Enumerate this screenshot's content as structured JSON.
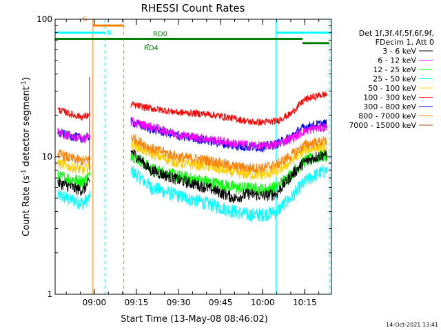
{
  "chart_data": {
    "type": "line",
    "title": "RHESSI Count Rates",
    "xlabel": "Start Time (13-May-08 08:46:02)",
    "ylabel_main": "Count Rate (s",
    "ylabel_sup1": "-1",
    "ylabel_mid": " detector segment",
    "ylabel_sup2": "-1",
    "ylabel_end": ")",
    "yscale": "log",
    "ylim": [
      1,
      100
    ],
    "xlim": [
      "08:46:02",
      "10:24:30"
    ],
    "x_ticks": [
      "09:00",
      "09:15",
      "09:30",
      "09:45",
      "10:00",
      "10:15"
    ],
    "y_ticks": [
      "1",
      "10",
      "100"
    ],
    "legend_header": [
      "Det 1f,3f,4f,5f,6f,9f,",
      "FDecim 1, Att 0"
    ],
    "legend_position": "right",
    "timestamp": "14-Oct-2021 13:41",
    "annotations": {
      "saa_label": "S",
      "night_label": "N",
      "rd0_label": "RD0",
      "rd4_label": "RD4"
    },
    "series": [
      {
        "name": "3 - 6 keV",
        "color": "#000000",
        "x": [
          "08:47",
          "08:50",
          "08:53",
          "08:56",
          "08:58",
          "09:13",
          "09:20",
          "09:30",
          "09:40",
          "09:50",
          "09:55",
          "10:00",
          "10:05",
          "10:10",
          "10:15",
          "10:20",
          "10:23"
        ],
        "values": [
          6.5,
          6.2,
          5.9,
          5.7,
          6.5,
          11,
          8,
          6.8,
          6.0,
          5.0,
          5.4,
          5.2,
          5.4,
          7.2,
          9.2,
          10.2,
          10.5
        ]
      },
      {
        "name": "6 - 12 keV",
        "color": "#ff00ff",
        "x": [
          "08:47",
          "08:50",
          "08:53",
          "08:56",
          "08:58",
          "09:13",
          "09:20",
          "09:30",
          "09:40",
          "09:50",
          "09:55",
          "10:00",
          "10:05",
          "10:10",
          "10:15",
          "10:20",
          "10:23"
        ],
        "values": [
          15,
          14.5,
          14,
          13.5,
          14,
          18,
          16.5,
          14.5,
          13.5,
          12.5,
          12.2,
          12.0,
          12.3,
          13.5,
          15.5,
          16.2,
          16.5
        ]
      },
      {
        "name": "12 - 25 keV",
        "color": "#00ff00",
        "x": [
          "08:47",
          "08:50",
          "08:53",
          "08:56",
          "08:58",
          "09:13",
          "09:20",
          "09:30",
          "09:40",
          "09:50",
          "09:55",
          "10:00",
          "10:05",
          "10:10",
          "10:15",
          "10:20",
          "10:23"
        ],
        "values": [
          7.2,
          7.0,
          6.8,
          6.6,
          7.2,
          10.5,
          8.2,
          7.2,
          6.6,
          6.0,
          5.9,
          5.8,
          6.0,
          7.5,
          9.3,
          10.0,
          10.3
        ]
      },
      {
        "name": "25 - 50 keV",
        "color": "#00ffff",
        "x": [
          "08:47",
          "08:50",
          "08:53",
          "08:56",
          "08:58",
          "09:13",
          "09:20",
          "09:30",
          "09:40",
          "09:50",
          "09:55",
          "10:00",
          "10:05",
          "10:10",
          "10:15",
          "10:20",
          "10:23"
        ],
        "values": [
          5.3,
          5.0,
          4.8,
          4.6,
          5.0,
          8.0,
          6.0,
          5.2,
          4.6,
          4.0,
          3.8,
          3.8,
          4.0,
          5.0,
          6.6,
          7.6,
          8.0
        ]
      },
      {
        "name": "50 - 100 keV",
        "color": "#ffcc00",
        "x": [
          "08:47",
          "08:50",
          "08:53",
          "08:56",
          "08:58",
          "09:13",
          "09:20",
          "09:30",
          "09:40",
          "09:50",
          "09:55",
          "10:00",
          "10:05",
          "10:10",
          "10:15",
          "10:20",
          "10:23"
        ],
        "values": [
          9.0,
          8.6,
          8.3,
          8.0,
          8.5,
          12.5,
          10.5,
          9.0,
          8.6,
          7.6,
          7.4,
          7.4,
          7.8,
          9.2,
          11.2,
          11.8,
          12.0
        ]
      },
      {
        "name": "100 - 300 keV",
        "color": "#ff0000",
        "x": [
          "08:47",
          "08:50",
          "08:53",
          "08:56",
          "08:58",
          "09:13",
          "09:20",
          "09:30",
          "09:40",
          "09:50",
          "09:55",
          "10:00",
          "10:05",
          "10:10",
          "10:15",
          "10:20",
          "10:23"
        ],
        "values": [
          22,
          21,
          20,
          19.5,
          20,
          24,
          22.5,
          21,
          20.5,
          19,
          18,
          17.8,
          18.2,
          20.5,
          26,
          28,
          28.5
        ]
      },
      {
        "name": "300 - 800 keV",
        "color": "#0000ff",
        "x": [
          "08:47",
          "08:50",
          "08:53",
          "08:56",
          "08:58",
          "09:13",
          "09:20",
          "09:30",
          "09:40",
          "09:50",
          "09:55",
          "10:00",
          "10:05",
          "10:10",
          "10:15",
          "10:20",
          "10:23"
        ],
        "values": [
          15,
          14.4,
          14,
          13.6,
          14,
          18,
          16,
          14.2,
          13.2,
          12.0,
          11.8,
          11.8,
          12.4,
          14.0,
          16.5,
          17.2,
          17.5
        ]
      },
      {
        "name": "800 - 7000 keV",
        "color": "#ff8000",
        "x": [
          "08:47",
          "08:50",
          "08:53",
          "08:56",
          "08:58",
          "09:13",
          "09:20",
          "09:30",
          "09:40",
          "09:50",
          "09:55",
          "10:00",
          "10:05",
          "10:10",
          "10:15",
          "10:20",
          "10:23"
        ],
        "values": [
          10.5,
          10.0,
          9.6,
          9.3,
          9.6,
          14,
          11.5,
          10.0,
          9.5,
          8.5,
          8.3,
          8.3,
          8.8,
          10.2,
          12.2,
          12.8,
          13.0
        ]
      },
      {
        "name": "7000 - 15000 keV",
        "color": "#a05000",
        "x": [],
        "values": []
      }
    ],
    "markers": {
      "vertical_lines": [
        {
          "x": "08:46:02",
          "color": "#00ffff",
          "style": "solid"
        },
        {
          "x": "08:59:30",
          "color": "#ff8000",
          "style": "solid"
        },
        {
          "x": "09:03:45",
          "color": "#00ffff",
          "style": "dashed"
        },
        {
          "x": "09:10:30",
          "color": "#ff8000",
          "style": "dashed"
        },
        {
          "x": "10:04:45",
          "color": "#00ffff",
          "style": "solid"
        },
        {
          "x": "10:23:45",
          "color": "#00ffff",
          "style": "dashed"
        }
      ],
      "bars": [
        {
          "label_key": "night",
          "color": "#00ffff",
          "y": 80,
          "segments": [
            [
              "08:46:02",
              "09:03:45"
            ],
            [
              "10:04:45",
              "10:24:30"
            ]
          ]
        },
        {
          "label_key": "saa",
          "color": "#ff8000",
          "y": 90,
          "segments": [
            [
              "08:59:30",
              "09:10:30"
            ]
          ]
        },
        {
          "label_key": "rd0",
          "color": "#008000",
          "y": 72,
          "segments": [
            [
              "08:46:02",
              "10:14:10"
            ]
          ]
        },
        {
          "label_key": "rd4",
          "color": "#008000",
          "y": 67,
          "segments": [
            [
              "10:14:10",
              "10:23:45"
            ]
          ]
        }
      ]
    }
  }
}
